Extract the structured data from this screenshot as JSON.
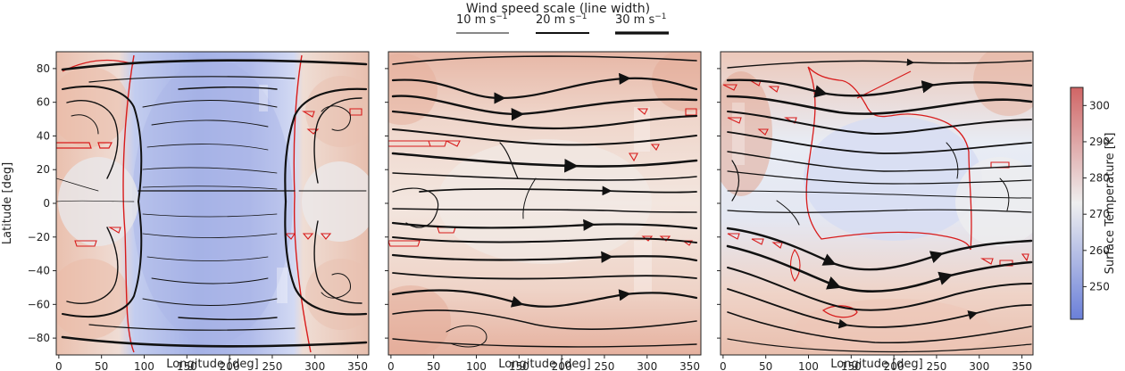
{
  "chart_data": {
    "type": "heatmap",
    "title": "Wind speed scale (line width)",
    "wind_scale": [
      {
        "label_num": "10 m s",
        "label_exp": "−1",
        "speed": 10
      },
      {
        "label_num": "20 m s",
        "label_exp": "−1",
        "speed": 20
      },
      {
        "label_num": "30 m s",
        "label_exp": "−1",
        "speed": 30
      }
    ],
    "xlabel": "Longitude [deg]",
    "ylabel": "Latitude [deg]",
    "xlim": [
      -3,
      363
    ],
    "ylim": [
      -90,
      90
    ],
    "xticks": [
      "0",
      "50",
      "100",
      "150",
      "200",
      "250",
      "300",
      "350"
    ],
    "xtick_values": [
      0,
      50,
      100,
      150,
      200,
      250,
      300,
      350
    ],
    "yticks": [
      "80",
      "60",
      "40",
      "20",
      "0",
      "−20",
      "−40",
      "−60",
      "−80"
    ],
    "ytick_values": [
      80,
      60,
      40,
      20,
      0,
      -20,
      -40,
      -60,
      -80
    ],
    "colorbar": {
      "label": "Surface Temperature [K]",
      "range": [
        241,
        305
      ],
      "ticks": [
        "300",
        "290",
        "280",
        "270",
        "260",
        "250"
      ],
      "tick_values": [
        300,
        290,
        280,
        270,
        260,
        250
      ],
      "colors": [
        "#6a7fd9",
        "#efefef",
        "#d06565"
      ]
    },
    "panels": [
      {
        "name": "left",
        "cold_region_lon": [
          88,
          280
        ],
        "temperature_samples": [
          {
            "lon": 20,
            "lat": 60,
            "temp": 285
          },
          {
            "lon": 20,
            "lat": -60,
            "temp": 286
          },
          {
            "lon": 180,
            "lat": 0,
            "temp": 253
          },
          {
            "lon": 330,
            "lat": 60,
            "temp": 284
          },
          {
            "lon": 330,
            "lat": -60,
            "temp": 285
          }
        ]
      },
      {
        "name": "center",
        "temperature_samples": [
          {
            "lon": 20,
            "lat": 70,
            "temp": 290
          },
          {
            "lon": 180,
            "lat": 0,
            "temp": 282
          },
          {
            "lon": 20,
            "lat": -70,
            "temp": 292
          },
          {
            "lon": 340,
            "lat": 70,
            "temp": 292
          }
        ]
      },
      {
        "name": "right",
        "cold_region_lon": [
          95,
          275
        ],
        "temperature_samples": [
          {
            "lon": 10,
            "lat": 40,
            "temp": 296
          },
          {
            "lon": 180,
            "lat": 20,
            "temp": 268
          },
          {
            "lon": 180,
            "lat": -70,
            "temp": 286
          },
          {
            "lon": 330,
            "lat": 0,
            "temp": 278
          }
        ]
      }
    ]
  }
}
